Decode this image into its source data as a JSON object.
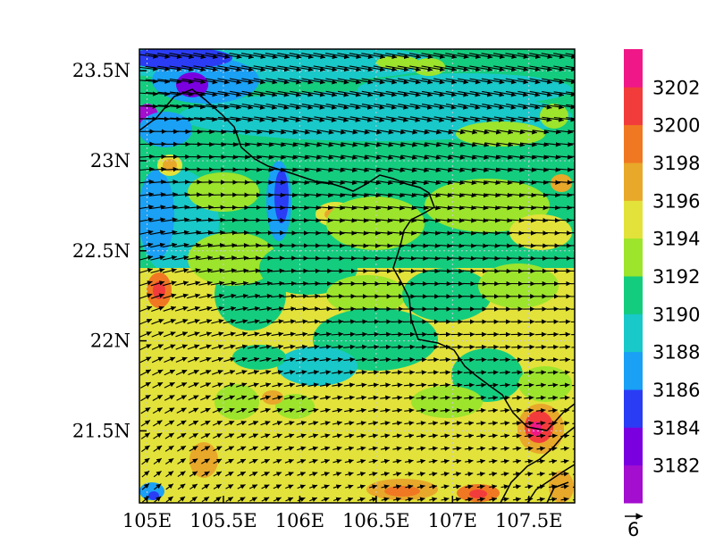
{
  "map": {
    "lon_range": [
      104.95,
      107.8
    ],
    "lat_range": [
      21.1,
      23.62
    ],
    "x_ticks": [
      {
        "value": 105.0,
        "label": "105E"
      },
      {
        "value": 105.5,
        "label": "105.5E"
      },
      {
        "value": 106.0,
        "label": "106E"
      },
      {
        "value": 106.5,
        "label": "106.5E"
      },
      {
        "value": 107.0,
        "label": "107E"
      },
      {
        "value": 107.5,
        "label": "107.5E"
      }
    ],
    "y_ticks": [
      {
        "value": 21.5,
        "label": "21.5N"
      },
      {
        "value": 22.0,
        "label": "22N"
      },
      {
        "value": 22.5,
        "label": "22.5N"
      },
      {
        "value": 23.0,
        "label": "23N"
      },
      {
        "value": 23.5,
        "label": "23.5N"
      }
    ],
    "colorbar": {
      "levels": [
        3182,
        3184,
        3186,
        3188,
        3190,
        3192,
        3194,
        3196,
        3198,
        3200,
        3202
      ],
      "labels": [
        "3182",
        "3184",
        "3186",
        "3188",
        "3190",
        "3192",
        "3194",
        "3196",
        "3198",
        "3200",
        "3202"
      ],
      "colors": [
        "#a30ecf",
        "#7a00e0",
        "#2a3df5",
        "#1aa0f5",
        "#19c8c8",
        "#14cc7e",
        "#9de42c",
        "#e2e23a",
        "#e8a82a",
        "#f07822",
        "#f23c3c",
        "#f01888"
      ]
    },
    "wind_reference": {
      "label": "6"
    },
    "legend_arrow": "reference-vector"
  }
}
